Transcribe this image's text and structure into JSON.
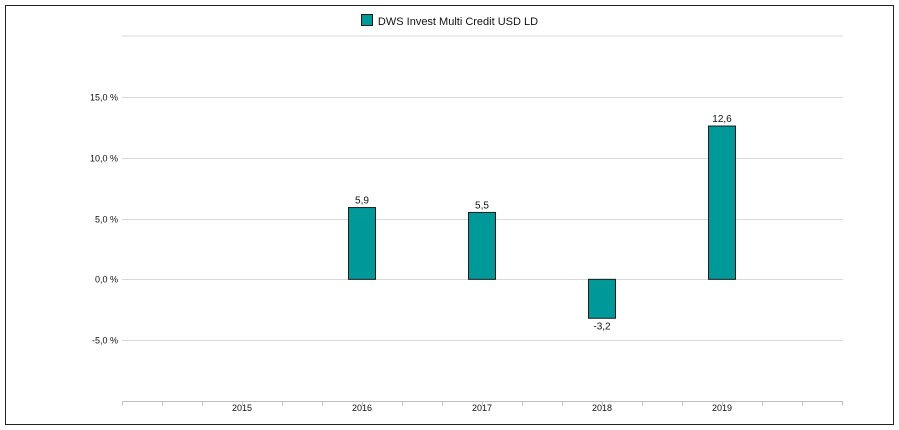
{
  "chart_data": {
    "type": "bar",
    "categories": [
      "2015",
      "2016",
      "2017",
      "2018",
      "2019"
    ],
    "series": [
      {
        "name": "DWS Invest Multi Credit  USD LD",
        "values": [
          null,
          5.9,
          5.5,
          -3.2,
          12.6
        ],
        "labels": [
          "",
          "5,9",
          "5,5",
          "-3,2",
          "12,6"
        ],
        "color": "#009999"
      }
    ],
    "yticks": [
      -5,
      0,
      5,
      10,
      15
    ],
    "ytick_labels": [
      "-5,0 %",
      "0,0 %",
      "5,0 %",
      "10,0 %",
      "15,0 %"
    ],
    "ylim": [
      -10,
      20
    ],
    "grid": true,
    "legend_position": "top-center"
  }
}
